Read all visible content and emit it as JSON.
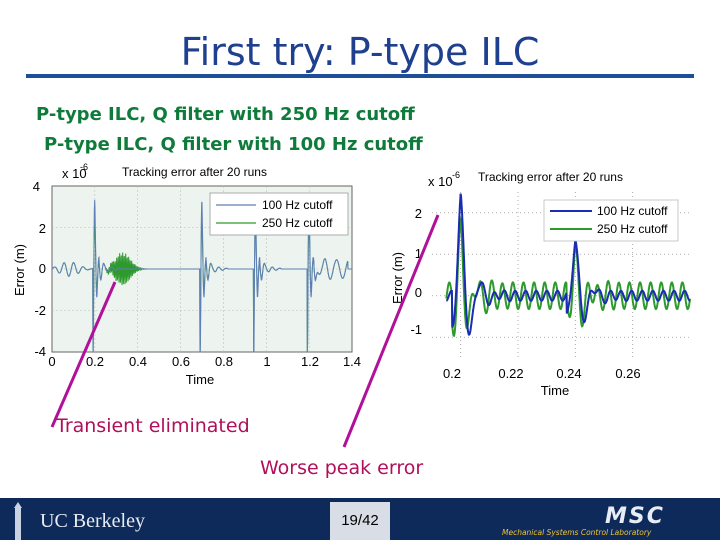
{
  "slide": {
    "title": "First try: P-type ILC",
    "subtitle_1": "P-type ILC, Q filter with 250 Hz cutoff",
    "subtitle_2": "P-type ILC, Q filter with 100 Hz cutoff",
    "note_1": "Transient eliminated",
    "note_2": "Worse peak error",
    "page_number": "19/42",
    "footer_left": "UC Berkeley",
    "footer_right": "MSC",
    "footer_right_sub": "Mechanical Systems Control Laboratory"
  },
  "colors": {
    "title": "#1f3f8f",
    "subtitle": "#0f7b3a",
    "note": "#b0105a",
    "series_100": "#1a2db0",
    "series_250": "#2e9a2e",
    "footer": "#0d2a5a"
  },
  "chart_data": [
    {
      "type": "line",
      "title": "Tracking error after 20 runs",
      "xlabel": "Time",
      "ylabel": "Error (m)",
      "y_scale_label": "x 10",
      "y_scale_exp": "-6",
      "xlim": [
        0,
        1.4
      ],
      "ylim": [
        -4,
        4
      ],
      "xticks": [
        "0",
        "0.2",
        "0.4",
        "0.6",
        "0.8",
        "1",
        "1.2",
        "1.4"
      ],
      "yticks": [
        "4",
        "2",
        "0",
        "-2",
        "-4"
      ],
      "legend": [
        "100 Hz cutoff",
        "250 Hz cutoff"
      ],
      "grid": true
    },
    {
      "type": "line",
      "title": "Tracking error after 20 runs",
      "xlabel": "Time",
      "ylabel": "Error (m)",
      "y_scale_label": "x 10",
      "y_scale_exp": "-6",
      "xlim": [
        0.19,
        0.28
      ],
      "ylim": [
        -1.5,
        2.5
      ],
      "xticks": [
        "0.2",
        "0.22",
        "0.24",
        "0.26"
      ],
      "yticks": [
        "2",
        "1",
        "0",
        "-1"
      ],
      "legend": [
        "100 Hz cutoff",
        "250 Hz cutoff"
      ],
      "grid": true
    }
  ]
}
